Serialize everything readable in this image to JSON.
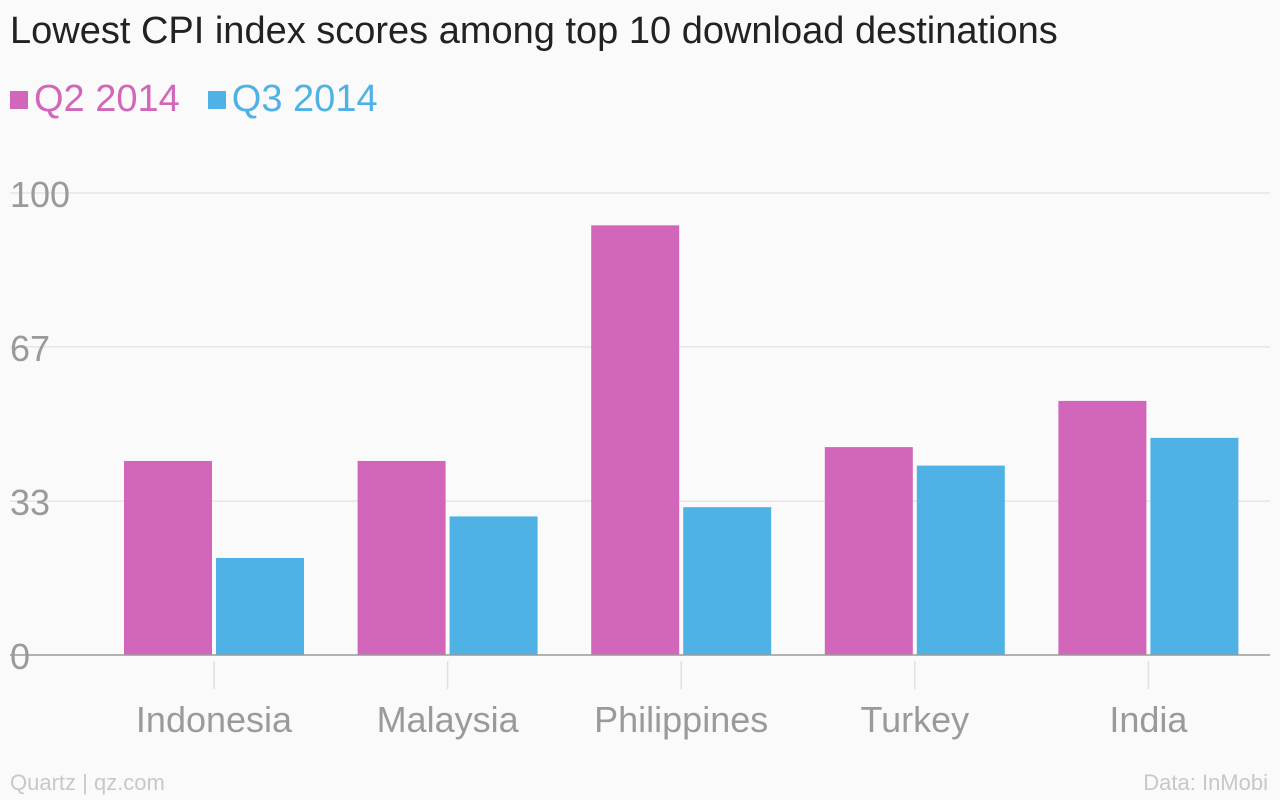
{
  "chart_data": {
    "type": "bar",
    "title": "Lowest CPI index scores among top 10 download destinations",
    "categories": [
      "Indonesia",
      "Malaysia",
      "Philippines",
      "Turkey",
      "India"
    ],
    "series": [
      {
        "name": "Q2 2014",
        "color": "#d166ba",
        "values": [
          42,
          42,
          93,
          45,
          55
        ]
      },
      {
        "name": "Q3 2014",
        "color": "#50b2e4",
        "values": [
          21,
          30,
          32,
          41,
          47
        ]
      }
    ],
    "yticks": [
      "0",
      "33",
      "67",
      "100"
    ],
    "ytick_values": [
      0,
      33.3,
      66.7,
      100
    ],
    "ylim": [
      0,
      100
    ],
    "grid": true,
    "legend": "top-left"
  },
  "footer": {
    "source_left": "Quartz | qz.com",
    "source_right": "Data: InMobi"
  }
}
